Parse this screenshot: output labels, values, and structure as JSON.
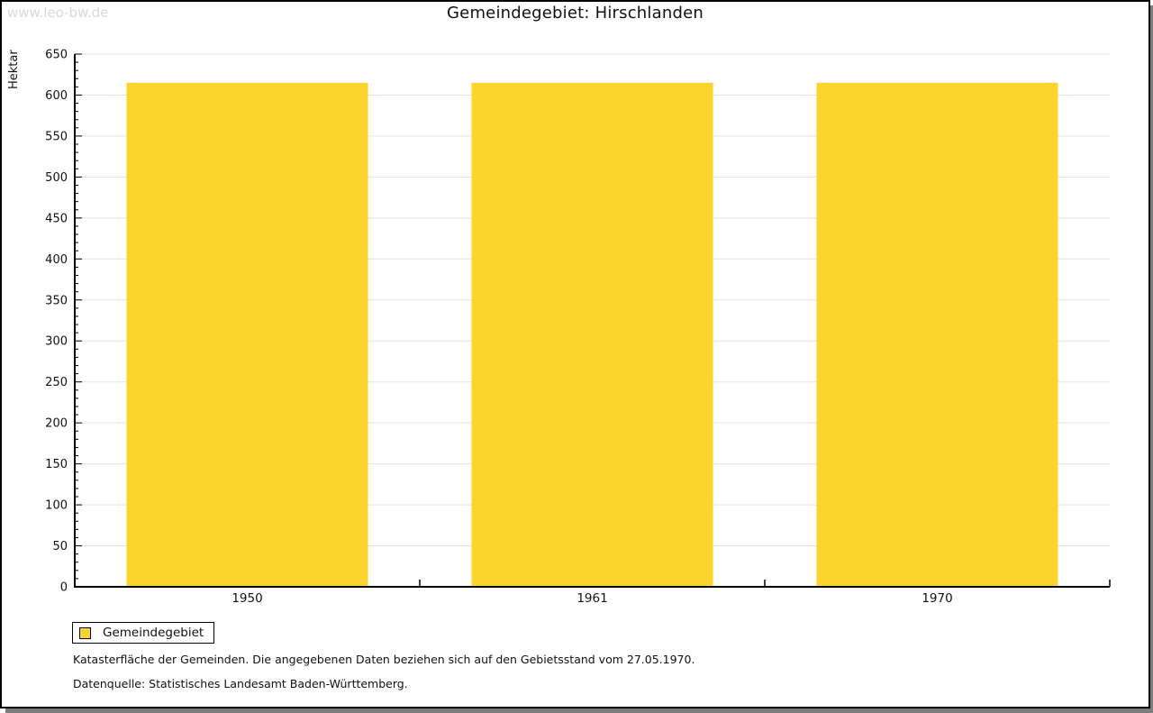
{
  "watermark": "www.leo-bw.de",
  "chart_data": {
    "type": "bar",
    "title": "Gemeindegebiet: Hirschlanden",
    "categories": [
      "1950",
      "1961",
      "1970"
    ],
    "series": [
      {
        "name": "Gemeindegebiet",
        "values": [
          615,
          615,
          615
        ]
      }
    ],
    "xlabel": "",
    "ylabel": "Hektar",
    "ylim": [
      0,
      650
    ],
    "y_major_step": 50,
    "y_minor_step": 10,
    "grid": true,
    "legend_position": "bottom-left",
    "bar_color": "#FCD42D"
  },
  "legend": {
    "items": [
      {
        "label": "Gemeindegebiet",
        "color": "#FCD42D"
      }
    ]
  },
  "footer": {
    "line1": "Katasterfläche der Gemeinden. Die angegebenen Daten beziehen sich auf den Gebietsstand vom 27.05.1970.",
    "line2": "Datenquelle: Statistisches Landesamt Baden-Württemberg."
  },
  "colors": {
    "bar": "#FCD42D",
    "grid": "#e3e3e3",
    "axis": "#000000",
    "text": "#111111",
    "watermark": "#d9d9d9",
    "shadow": "#7d7d7d",
    "frame_border": "#000000"
  }
}
